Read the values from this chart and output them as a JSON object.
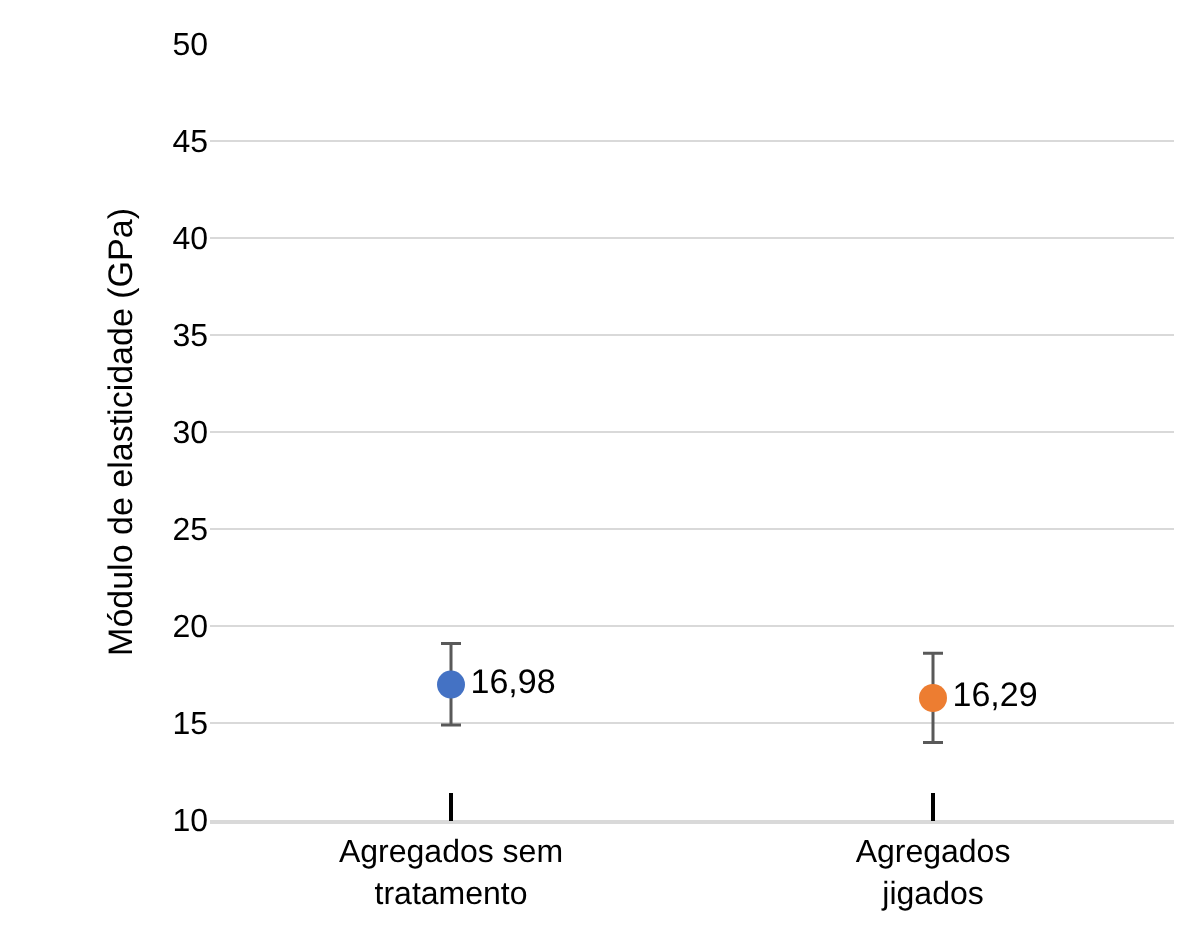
{
  "chart_data": {
    "type": "scatter",
    "ylabel": "Módulo de elasticidade (GPa)",
    "categories": [
      "Agregados sem tratamento",
      "Agregados jigados"
    ],
    "values": [
      16.98,
      16.29
    ],
    "colors": [
      "#4472c4",
      "#ed7d31"
    ],
    "errors": [
      [
        14.9,
        19.1
      ],
      [
        14.0,
        18.6
      ]
    ],
    "value_labels": [
      "16,98",
      "16,29"
    ],
    "ylim": [
      10,
      50
    ],
    "yticks": [
      10,
      15,
      20,
      25,
      30,
      35,
      40,
      45,
      50
    ],
    "grid": "y",
    "marker": "circle"
  }
}
